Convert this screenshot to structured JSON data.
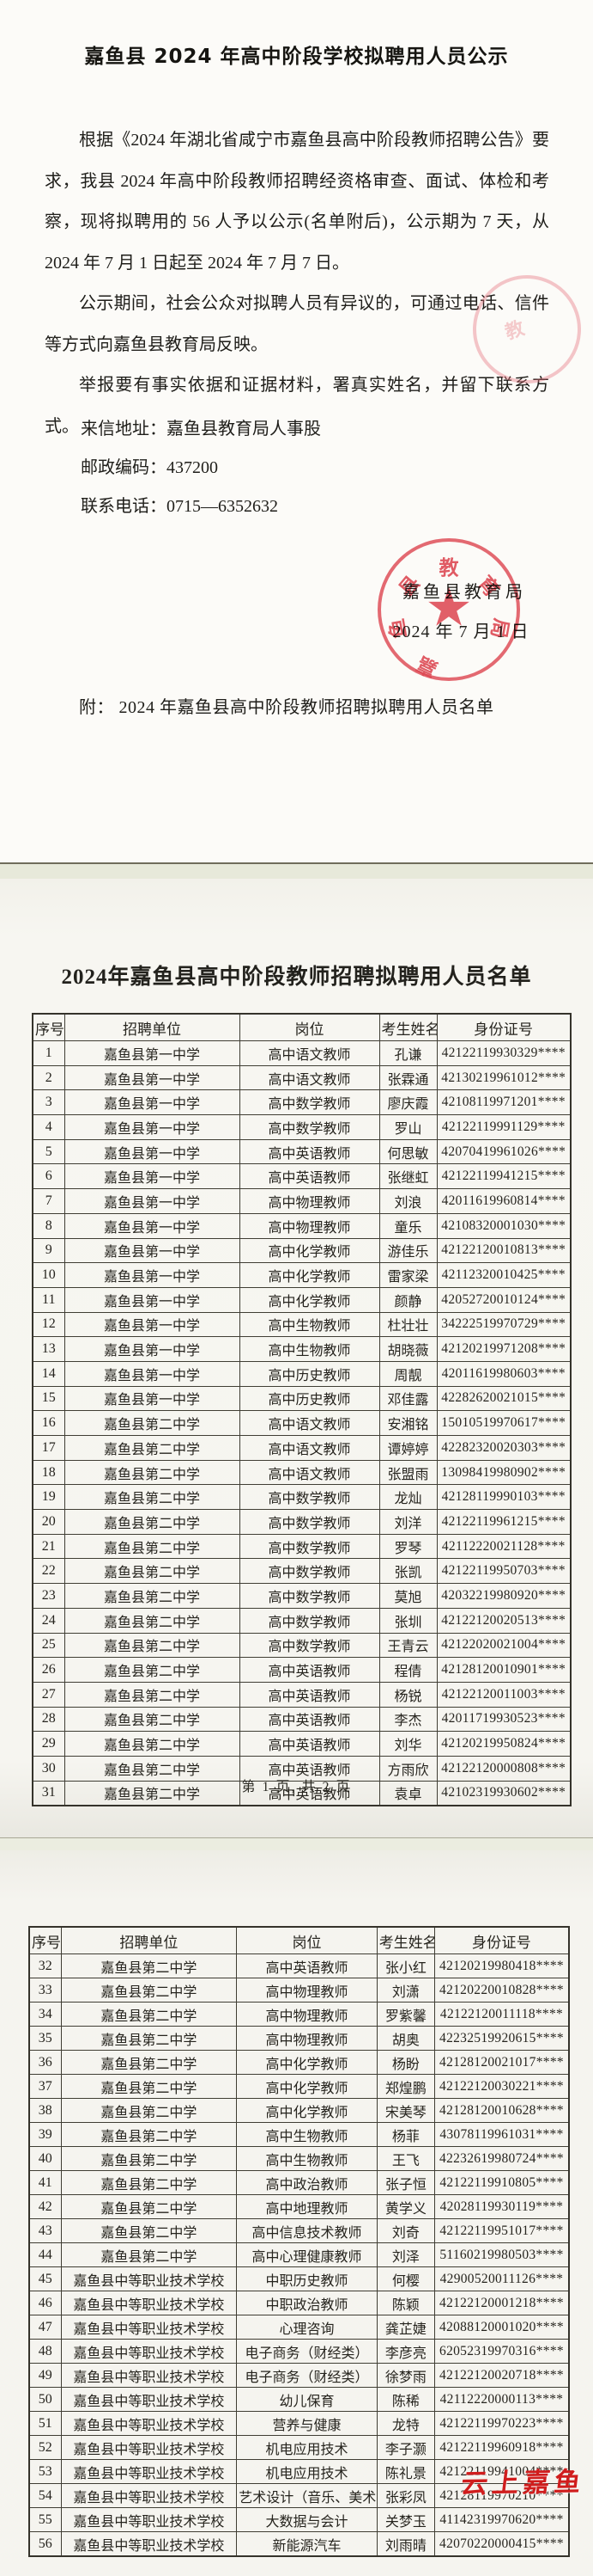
{
  "doc": {
    "title": "嘉鱼县 2024 年高中阶段学校拟聘用人员公示",
    "paragraphs": [
      "根据《2024 年湖北省咸宁市嘉鱼县高中阶段教师招聘公告》要求，我县 2024 年高中阶段教师招聘经资格审查、面试、体检和考察，现将拟聘用的 56 人予以公示(名单附后)，公示期为 7 天，从 2024 年 7 月 1 日起至 2024 年 7 月 7 日。",
      "公示期间，社会公众对拟聘人员有异议的，可通过电话、信件等方式向嘉鱼县教育局反映。",
      "举报要有事实依据和证据材料，署真实姓名，并留下联系方式。"
    ],
    "contact_lines": [
      "来信地址：嘉鱼县教育局人事股",
      "邮政编码：437200",
      "联系电话：0715—6352632"
    ],
    "signature": {
      "org": "嘉鱼县教育局",
      "date": "2024 年 7 月 1 日"
    },
    "seal_text": "嘉鱼县教育局",
    "attachment": "附：  2024 年嘉鱼县高中阶段教师招聘拟聘用人员名单"
  },
  "roster_section": {
    "title": "2024年嘉鱼县高中阶段教师招聘拟聘用人员名单",
    "page1_footer": "第 1 页, 共 2 页"
  },
  "table": {
    "columns": [
      "序号",
      "招聘单位",
      "岗位",
      "考生姓名",
      "身份证号"
    ]
  },
  "roster": [
    {
      "no": "1",
      "unit": "嘉鱼县第一中学",
      "post": "高中语文教师",
      "name": "孔谦",
      "id": "42122119930329****"
    },
    {
      "no": "2",
      "unit": "嘉鱼县第一中学",
      "post": "高中语文教师",
      "name": "张霖通",
      "id": "42130219961012****"
    },
    {
      "no": "3",
      "unit": "嘉鱼县第一中学",
      "post": "高中数学教师",
      "name": "廖庆霞",
      "id": "42108119971201****"
    },
    {
      "no": "4",
      "unit": "嘉鱼县第一中学",
      "post": "高中数学教师",
      "name": "罗山",
      "id": "42122119991129****"
    },
    {
      "no": "5",
      "unit": "嘉鱼县第一中学",
      "post": "高中英语教师",
      "name": "何思敏",
      "id": "42070419961026****"
    },
    {
      "no": "6",
      "unit": "嘉鱼县第一中学",
      "post": "高中英语教师",
      "name": "张继虹",
      "id": "42122119941215****"
    },
    {
      "no": "7",
      "unit": "嘉鱼县第一中学",
      "post": "高中物理教师",
      "name": "刘浪",
      "id": "42011619960814****"
    },
    {
      "no": "8",
      "unit": "嘉鱼县第一中学",
      "post": "高中物理教师",
      "name": "童乐",
      "id": "42108320001030****"
    },
    {
      "no": "9",
      "unit": "嘉鱼县第一中学",
      "post": "高中化学教师",
      "name": "游佳乐",
      "id": "42122120010813****"
    },
    {
      "no": "10",
      "unit": "嘉鱼县第一中学",
      "post": "高中化学教师",
      "name": "雷家梁",
      "id": "42112320010425****"
    },
    {
      "no": "11",
      "unit": "嘉鱼县第一中学",
      "post": "高中化学教师",
      "name": "颜静",
      "id": "42052720010124****"
    },
    {
      "no": "12",
      "unit": "嘉鱼县第一中学",
      "post": "高中生物教师",
      "name": "杜壮壮",
      "id": "34222519970729****"
    },
    {
      "no": "13",
      "unit": "嘉鱼县第一中学",
      "post": "高中生物教师",
      "name": "胡晓薇",
      "id": "42120219971208****"
    },
    {
      "no": "14",
      "unit": "嘉鱼县第一中学",
      "post": "高中历史教师",
      "name": "周靓",
      "id": "42011619980603****"
    },
    {
      "no": "15",
      "unit": "嘉鱼县第一中学",
      "post": "高中历史教师",
      "name": "邓佳露",
      "id": "42282620021015****"
    },
    {
      "no": "16",
      "unit": "嘉鱼县第二中学",
      "post": "高中语文教师",
      "name": "安湘铭",
      "id": "15010519970617****"
    },
    {
      "no": "17",
      "unit": "嘉鱼县第二中学",
      "post": "高中语文教师",
      "name": "谭婷婷",
      "id": "42282320020303****"
    },
    {
      "no": "18",
      "unit": "嘉鱼县第二中学",
      "post": "高中语文教师",
      "name": "张盟雨",
      "id": "13098419980902****"
    },
    {
      "no": "19",
      "unit": "嘉鱼县第二中学",
      "post": "高中数学教师",
      "name": "龙灿",
      "id": "42128119990103****"
    },
    {
      "no": "20",
      "unit": "嘉鱼县第二中学",
      "post": "高中数学教师",
      "name": "刘洋",
      "id": "42122119961215****"
    },
    {
      "no": "21",
      "unit": "嘉鱼县第二中学",
      "post": "高中数学教师",
      "name": "罗琴",
      "id": "42112220021128****"
    },
    {
      "no": "22",
      "unit": "嘉鱼县第二中学",
      "post": "高中数学教师",
      "name": "张凯",
      "id": "42122119950703****"
    },
    {
      "no": "23",
      "unit": "嘉鱼县第二中学",
      "post": "高中数学教师",
      "name": "莫旭",
      "id": "42032219980920****"
    },
    {
      "no": "24",
      "unit": "嘉鱼县第二中学",
      "post": "高中数学教师",
      "name": "张圳",
      "id": "42122120020513****"
    },
    {
      "no": "25",
      "unit": "嘉鱼县第二中学",
      "post": "高中数学教师",
      "name": "王青云",
      "id": "42122020021004****"
    },
    {
      "no": "26",
      "unit": "嘉鱼县第二中学",
      "post": "高中英语教师",
      "name": "程倩",
      "id": "42128120010901****"
    },
    {
      "no": "27",
      "unit": "嘉鱼县第二中学",
      "post": "高中英语教师",
      "name": "杨锐",
      "id": "42122120011003****"
    },
    {
      "no": "28",
      "unit": "嘉鱼县第二中学",
      "post": "高中英语教师",
      "name": "李杰",
      "id": "42011719930523****"
    },
    {
      "no": "29",
      "unit": "嘉鱼县第二中学",
      "post": "高中英语教师",
      "name": "刘华",
      "id": "42120219950824****"
    },
    {
      "no": "30",
      "unit": "嘉鱼县第二中学",
      "post": "高中英语教师",
      "name": "方雨欣",
      "id": "42122120000808****"
    },
    {
      "no": "31",
      "unit": "嘉鱼县第二中学",
      "post": "高中英语教师",
      "name": "袁卓",
      "id": "42102319930602****"
    },
    {
      "no": "32",
      "unit": "嘉鱼县第二中学",
      "post": "高中英语教师",
      "name": "张小红",
      "id": "42120219980418****"
    },
    {
      "no": "33",
      "unit": "嘉鱼县第二中学",
      "post": "高中物理教师",
      "name": "刘潇",
      "id": "42120220010828****"
    },
    {
      "no": "34",
      "unit": "嘉鱼县第二中学",
      "post": "高中物理教师",
      "name": "罗紫馨",
      "id": "42122120011118****"
    },
    {
      "no": "35",
      "unit": "嘉鱼县第二中学",
      "post": "高中物理教师",
      "name": "胡奥",
      "id": "42232519920615****"
    },
    {
      "no": "36",
      "unit": "嘉鱼县第二中学",
      "post": "高中化学教师",
      "name": "杨盼",
      "id": "42128120021017****"
    },
    {
      "no": "37",
      "unit": "嘉鱼县第二中学",
      "post": "高中化学教师",
      "name": "郑煌鹏",
      "id": "42122120030221****"
    },
    {
      "no": "38",
      "unit": "嘉鱼县第二中学",
      "post": "高中化学教师",
      "name": "宋美琴",
      "id": "42128120010628****"
    },
    {
      "no": "39",
      "unit": "嘉鱼县第二中学",
      "post": "高中生物教师",
      "name": "杨菲",
      "id": "43078119961031****"
    },
    {
      "no": "40",
      "unit": "嘉鱼县第二中学",
      "post": "高中生物教师",
      "name": "王飞",
      "id": "42232619980724****"
    },
    {
      "no": "41",
      "unit": "嘉鱼县第二中学",
      "post": "高中政治教师",
      "name": "张子恒",
      "id": "42122119910805****"
    },
    {
      "no": "42",
      "unit": "嘉鱼县第二中学",
      "post": "高中地理教师",
      "name": "黄学义",
      "id": "42028119930119****"
    },
    {
      "no": "43",
      "unit": "嘉鱼县第二中学",
      "post": "高中信息技术教师",
      "name": "刘奇",
      "id": "42122119951017****"
    },
    {
      "no": "44",
      "unit": "嘉鱼县第二中学",
      "post": "高中心理健康教师",
      "name": "刘泽",
      "id": "51160219980503****"
    },
    {
      "no": "45",
      "unit": "嘉鱼县中等职业技术学校",
      "post": "中职历史教师",
      "name": "何樱",
      "id": "42900520011126****"
    },
    {
      "no": "46",
      "unit": "嘉鱼县中等职业技术学校",
      "post": "中职政治教师",
      "name": "陈颖",
      "id": "42122120001218****"
    },
    {
      "no": "47",
      "unit": "嘉鱼县中等职业技术学校",
      "post": "心理咨询",
      "name": "龚芷婕",
      "id": "42088120001020****"
    },
    {
      "no": "48",
      "unit": "嘉鱼县中等职业技术学校",
      "post": "电子商务（财经类）",
      "name": "李彦亮",
      "id": "62052319970316****"
    },
    {
      "no": "49",
      "unit": "嘉鱼县中等职业技术学校",
      "post": "电子商务（财经类）",
      "name": "徐梦雨",
      "id": "42122120020718****"
    },
    {
      "no": "50",
      "unit": "嘉鱼县中等职业技术学校",
      "post": "幼儿保育",
      "name": "陈稀",
      "id": "42112220000113****"
    },
    {
      "no": "51",
      "unit": "嘉鱼县中等职业技术学校",
      "post": "营养与健康",
      "name": "龙特",
      "id": "42122119970223****"
    },
    {
      "no": "52",
      "unit": "嘉鱼县中等职业技术学校",
      "post": "机电应用技术",
      "name": "李子灏",
      "id": "42122119960918****"
    },
    {
      "no": "53",
      "unit": "嘉鱼县中等职业技术学校",
      "post": "机电应用技术",
      "name": "陈礼景",
      "id": "42122119941004****"
    },
    {
      "no": "54",
      "unit": "嘉鱼县中等职业技术学校",
      "post": "艺术设计（音乐、美术）",
      "name": "张彩凤",
      "id": "42128119970210****"
    },
    {
      "no": "55",
      "unit": "嘉鱼县中等职业技术学校",
      "post": "大数据与会计",
      "name": "关梦玉",
      "id": "41142319970620****"
    },
    {
      "no": "56",
      "unit": "嘉鱼县中等职业技术学校",
      "post": "新能源汽车",
      "name": "刘雨晴",
      "id": "42070220000415****"
    }
  ],
  "watermark": "云上嘉鱼",
  "colors": {
    "seal_red": "#e04a56",
    "watermark_red": "#d01d1d"
  }
}
